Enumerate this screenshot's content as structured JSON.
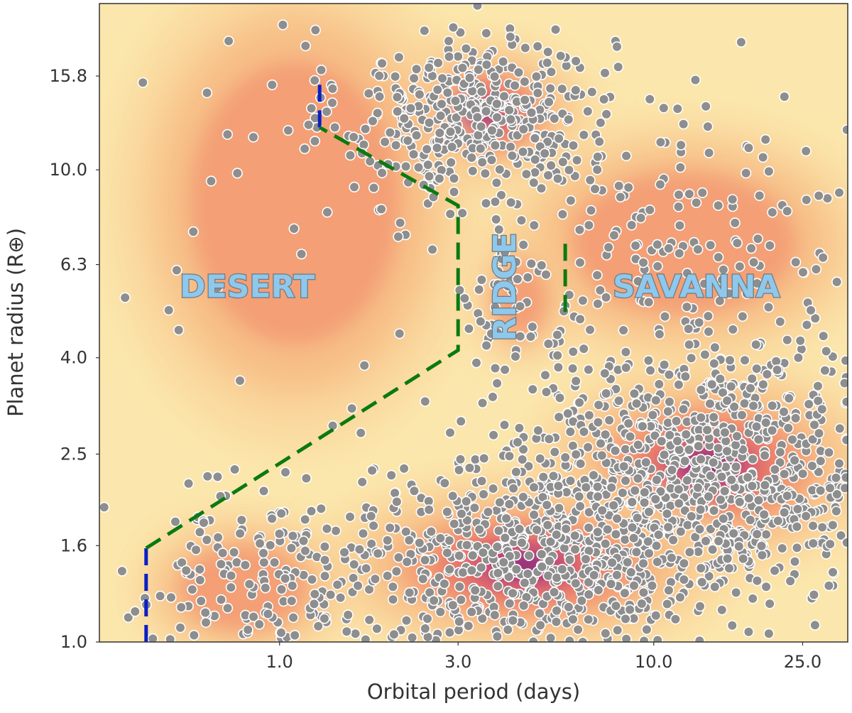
{
  "chart_data": {
    "type": "scatter",
    "title": "",
    "xlabel": "Orbital period (days)",
    "ylabel": "Planet radius (R⊕)",
    "xscale": "log",
    "yscale": "log",
    "xlim": [
      0.33,
      33
    ],
    "ylim": [
      1.0,
      22.5
    ],
    "xticks": [
      {
        "value": 1.0,
        "label": "1.0"
      },
      {
        "value": 3.0,
        "label": "3.0"
      },
      {
        "value": 10.0,
        "label": "10.0"
      },
      {
        "value": 25.0,
        "label": "25.0"
      }
    ],
    "yticks": [
      {
        "value": 1.0,
        "label": "1.0"
      },
      {
        "value": 1.6,
        "label": "1.6"
      },
      {
        "value": 2.5,
        "label": "2.5"
      },
      {
        "value": 4.0,
        "label": "4.0"
      },
      {
        "value": 6.3,
        "label": "6.3"
      },
      {
        "value": 10.0,
        "label": "10.0"
      },
      {
        "value": 15.8,
        "label": "15.8"
      }
    ],
    "regions": [
      {
        "name": "desert",
        "label": "DESERT",
        "period": 0.82,
        "radius": 5.6,
        "rotate": 0
      },
      {
        "name": "ridge",
        "label": "RIDGE",
        "period": 4.05,
        "radius": 5.65,
        "rotate": -90
      },
      {
        "name": "savanna",
        "label": "SAVANNA",
        "period": 13.0,
        "radius": 5.6,
        "rotate": 0
      }
    ],
    "boundaries": [
      {
        "name": "desert-lower-boundary",
        "color": "#0a1fc4",
        "points": [
          [
            0.44,
            1.0
          ],
          [
            0.44,
            1.58
          ]
        ]
      },
      {
        "name": "desert-upper-boundary",
        "color": "#0a1fc4",
        "points": [
          [
            1.28,
            12.3
          ],
          [
            1.28,
            15.6
          ]
        ]
      },
      {
        "name": "desert-ridge-boundary",
        "color": "#0a7a10",
        "points": [
          [
            0.44,
            1.58
          ],
          [
            3.0,
            4.15
          ],
          [
            3.0,
            8.4
          ],
          [
            1.28,
            12.3
          ]
        ]
      },
      {
        "name": "ridge-savanna-boundary",
        "color": "#0a7a10",
        "points": [
          [
            5.8,
            5.0
          ],
          [
            5.8,
            7.0
          ]
        ]
      }
    ],
    "clusters": [
      {
        "name": "hot-jupiters",
        "period_center": 3.4,
        "radius_center": 13.2,
        "sigma_log_period": 0.18,
        "sigma_log_radius": 0.09,
        "count": 420
      },
      {
        "name": "sub-neptunes",
        "period_center": 14.0,
        "radius_center": 2.35,
        "sigma_log_period": 0.28,
        "sigma_log_radius": 0.13,
        "count": 900
      },
      {
        "name": "super-earths",
        "period_center": 4.5,
        "radius_center": 1.45,
        "sigma_log_period": 0.33,
        "sigma_log_radius": 0.11,
        "count": 650
      },
      {
        "name": "short-period-small",
        "period_center": 0.8,
        "radius_center": 1.3,
        "sigma_log_period": 0.17,
        "sigma_log_radius": 0.09,
        "count": 140
      },
      {
        "name": "savanna-scatter",
        "period_center": 12.0,
        "radius_center": 7.0,
        "sigma_log_period": 0.3,
        "sigma_log_radius": 0.15,
        "count": 160
      },
      {
        "name": "ridge-scatter",
        "period_center": 4.4,
        "radius_center": 5.3,
        "sigma_log_period": 0.07,
        "sigma_log_radius": 0.08,
        "count": 45
      },
      {
        "name": "desert-scatter",
        "period_center": 1.1,
        "radius_center": 8.5,
        "sigma_log_period": 0.28,
        "sigma_log_radius": 0.3,
        "count": 40
      }
    ],
    "colors": {
      "background": "#fbe7ad",
      "density_levels": [
        "#f9d49a",
        "#f6b47f",
        "#f18b6a",
        "#e26764",
        "#c84775",
        "#9c2f86",
        "#6a1f80",
        "#3a0f5a"
      ],
      "point_fill": "#8e8e8e",
      "point_stroke": "#ffffff",
      "axes": "#333333"
    }
  }
}
